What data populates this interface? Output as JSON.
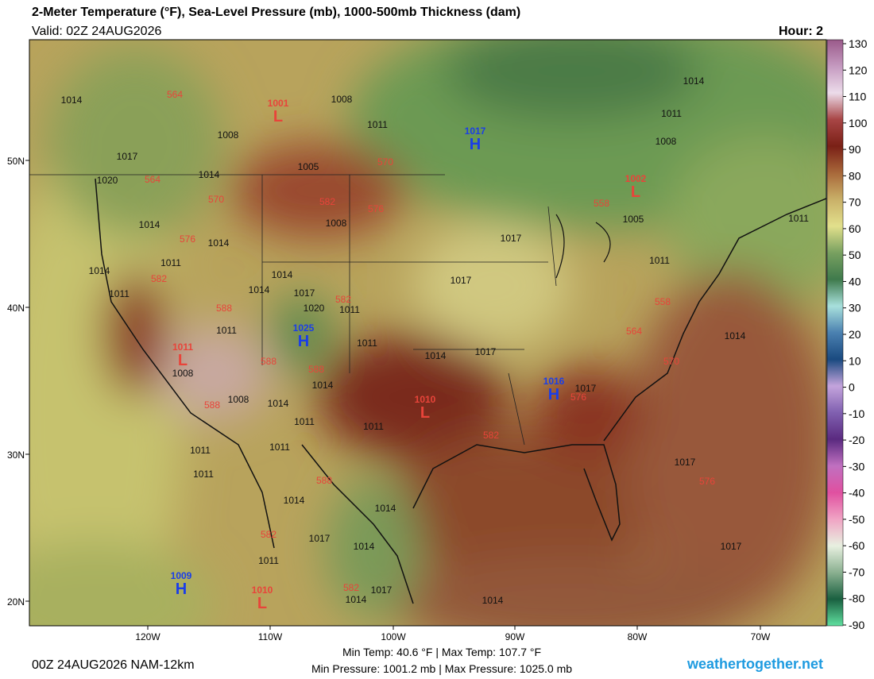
{
  "header": {
    "title": "2-Meter Temperature (°F), Sea-Level Pressure (mb), 1000-500mb Thickness (dam)",
    "valid": "Valid: 02Z 24AUG2026",
    "hour": "Hour: 2"
  },
  "colorbar": {
    "ticks": [
      130,
      120,
      110,
      100,
      90,
      80,
      70,
      60,
      50,
      40,
      30,
      20,
      10,
      0,
      -10,
      -20,
      -30,
      -40,
      -50,
      -60,
      -70,
      -80,
      -90
    ],
    "colors": [
      "#9a5a8a",
      "#c59ac0",
      "#ecdcea",
      "#a84545",
      "#7a2016",
      "#a8683a",
      "#c9b068",
      "#e2e08c",
      "#78a060",
      "#3f7a4c",
      "#a8e0dc",
      "#4a80b0",
      "#1a4a80",
      "#c4a4dc",
      "#8060b0",
      "#5a2a80",
      "#c070c0",
      "#e050a0",
      "#f0a4c4",
      "#e8f0e0",
      "#8ab090",
      "#1a6040",
      "#60e0a0"
    ]
  },
  "lat_labels": [
    "50N",
    "40N",
    "30N",
    "20N"
  ],
  "lon_labels": [
    "120W",
    "110W",
    "100W",
    "90W",
    "80W",
    "70W"
  ],
  "pressure_centers": [
    {
      "kind": "L",
      "value": 1001
    },
    {
      "kind": "H",
      "value": 1017
    },
    {
      "kind": "L",
      "value": 1002
    },
    {
      "kind": "H",
      "value": 1025
    },
    {
      "kind": "L",
      "value": 1011
    },
    {
      "kind": "L",
      "value": 1010
    },
    {
      "kind": "H",
      "value": 1016
    },
    {
      "kind": "H",
      "value": 1009
    },
    {
      "kind": "L",
      "value": 1010
    }
  ],
  "isobar_labels": [
    1014,
    1008,
    1017,
    1020,
    1014,
    1008,
    1005,
    1011,
    1014,
    1011,
    1008,
    1005,
    1011,
    1017,
    1008,
    1014,
    1014,
    1011,
    1014,
    1014,
    1017,
    1011,
    1011,
    1014,
    1017,
    1020,
    1011,
    1011,
    1011,
    1014,
    1017,
    1014,
    1008,
    1014,
    1008,
    1014,
    1017,
    1011,
    1011,
    1011,
    1011,
    1011,
    1017,
    1014,
    1014,
    1017,
    1014,
    1017,
    1011,
    1017,
    1014,
    1014
  ],
  "thickness_labels": [
    564,
    570,
    564,
    570,
    582,
    576,
    558,
    576,
    582,
    588,
    582,
    558,
    564,
    588,
    588,
    570,
    576,
    588,
    582,
    576,
    588,
    582,
    582
  ],
  "footer": {
    "run": "00Z 24AUG2026 NAM-12km",
    "min_max_temp": "Min Temp:  40.6 °F | Max Temp: 107.7 °F",
    "min_max_pressure": "Min Pressure: 1001.2 mb | Max Pressure: 1025.0 mb",
    "site": "weathertogether.net"
  }
}
